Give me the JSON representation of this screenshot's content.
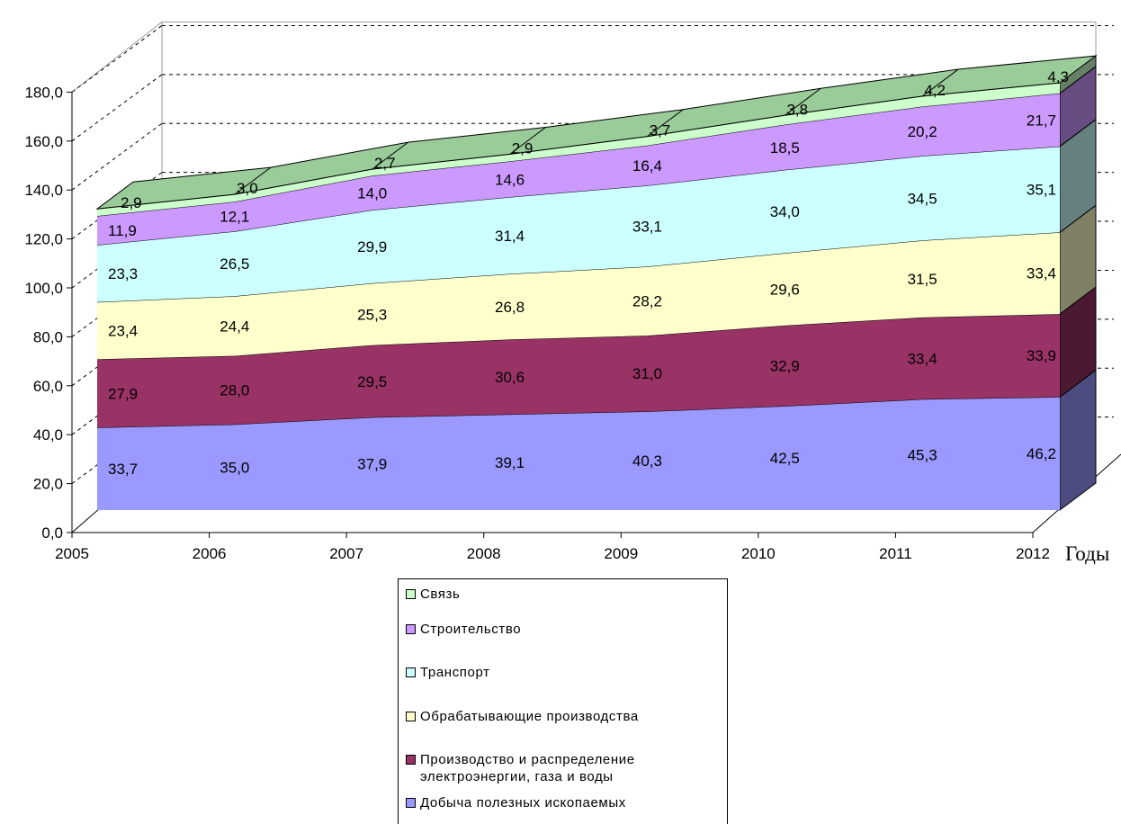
{
  "chart_data": {
    "type": "area",
    "stacked": true,
    "three_d": true,
    "categories": [
      "2005",
      "2006",
      "2007",
      "2008",
      "2009",
      "2010",
      "2011",
      "2012"
    ],
    "x_axis_label": "Годы",
    "y_ticks": [
      "0,0",
      "20,0",
      "40,0",
      "60,0",
      "80,0",
      "100,0",
      "120,0",
      "140,0",
      "160,0",
      "180,0"
    ],
    "ylim": [
      0,
      180
    ],
    "legend_position": "bottom",
    "series": [
      {
        "name": "Добыча полезных ископаемых",
        "color": "#9999ff",
        "side_color": "#4c4c80",
        "values": [
          33.7,
          35.0,
          37.9,
          39.1,
          40.3,
          42.5,
          45.3,
          46.2
        ],
        "labels": [
          "33,7",
          "35,0",
          "37,9",
          "39,1",
          "40,3",
          "42,5",
          "45,3",
          "46,2"
        ]
      },
      {
        "name": "Производство и распределение\nэлектроэнергии, газа и воды",
        "color": "#993366",
        "side_color": "#4c1933",
        "values": [
          27.9,
          28.0,
          29.5,
          30.6,
          31.0,
          32.9,
          33.4,
          33.9
        ],
        "labels": [
          "27,9",
          "28,0",
          "29,5",
          "30,6",
          "31,0",
          "32,9",
          "33,4",
          "33,9"
        ]
      },
      {
        "name": "Обрабатывающие производства",
        "color": "#ffffcc",
        "side_color": "#808066",
        "values": [
          23.4,
          24.4,
          25.3,
          26.8,
          28.2,
          29.6,
          31.5,
          33.4
        ],
        "labels": [
          "23,4",
          "24,4",
          "25,3",
          "26,8",
          "28,2",
          "29,6",
          "31,5",
          "33,4"
        ]
      },
      {
        "name": "Транспорт",
        "color": "#ccffff",
        "side_color": "#668080",
        "values": [
          23.3,
          26.5,
          29.9,
          31.4,
          33.1,
          34.0,
          34.5,
          35.1
        ],
        "labels": [
          "23,3",
          "26,5",
          "29,9",
          "31,4",
          "33,1",
          "34,0",
          "34,5",
          "35,1"
        ]
      },
      {
        "name": "Строительство",
        "color": "#cc99ff",
        "side_color": "#664c80",
        "values": [
          11.9,
          12.1,
          14.0,
          14.6,
          16.4,
          18.5,
          20.2,
          21.7
        ],
        "labels": [
          "11,9",
          "12,1",
          "14,0",
          "14,6",
          "16,4",
          "18,5",
          "20,2",
          "21,7"
        ]
      },
      {
        "name": "Связь",
        "color": "#ccffcc",
        "side_color": "#668066",
        "top_color": "#99cc99",
        "values": [
          2.9,
          3.0,
          2.7,
          2.9,
          3.7,
          3.8,
          4.2,
          4.3
        ],
        "labels": [
          "2,9",
          "3,0",
          "2,7",
          "2,9",
          "3,7",
          "3,8",
          "4,2",
          "4,3"
        ]
      }
    ]
  }
}
